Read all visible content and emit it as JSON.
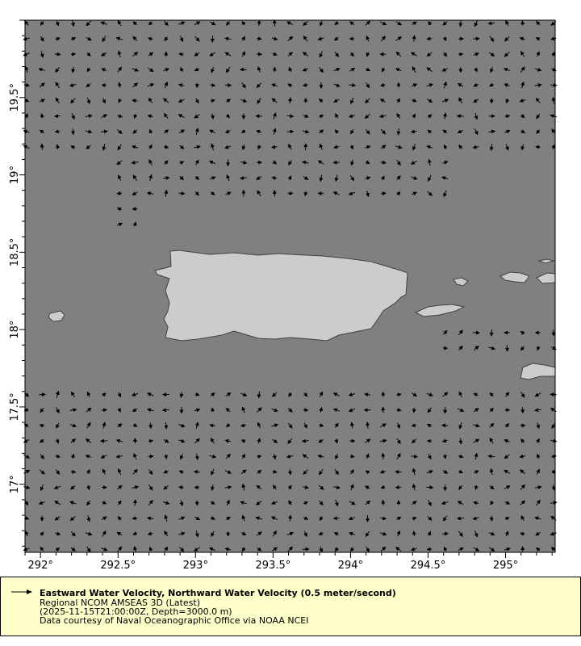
{
  "colors": {
    "ocean": "#808080",
    "land": "#cccccc",
    "coastline": "#404040",
    "vector": "#000000",
    "legend_bg": "#ffffcc"
  },
  "chart_data": {
    "type": "vector-map",
    "xlim": [
      291.9,
      295.32
    ],
    "ylim": [
      16.56,
      20.0
    ],
    "x_ticks": [
      "292°",
      "292.5°",
      "293°",
      "293.5°",
      "294°",
      "294.5°",
      "295°"
    ],
    "x_tick_values": [
      292,
      292.5,
      293,
      293.5,
      294,
      294.5,
      295
    ],
    "y_ticks": [
      "17°",
      "17.5°",
      "18°",
      "18.5°",
      "19°",
      "19.5°"
    ],
    "y_tick_values": [
      17,
      17.5,
      18,
      18.5,
      19,
      19.5
    ],
    "grid": false,
    "vector_spacing_deg": 0.1
  },
  "legend": {
    "title": "Eastward Water Velocity, Northward Water Velocity (0.5 meter/second)",
    "line2": "Regional NCOM AMSEAS 3D (Latest)",
    "line3": "(2025-11-15T21:00:00Z, Depth=3000.0 m)",
    "line4": "Data courtesy of Naval Oceanographic Office via NOAA NCEI",
    "icon": "arrow-right-icon"
  }
}
